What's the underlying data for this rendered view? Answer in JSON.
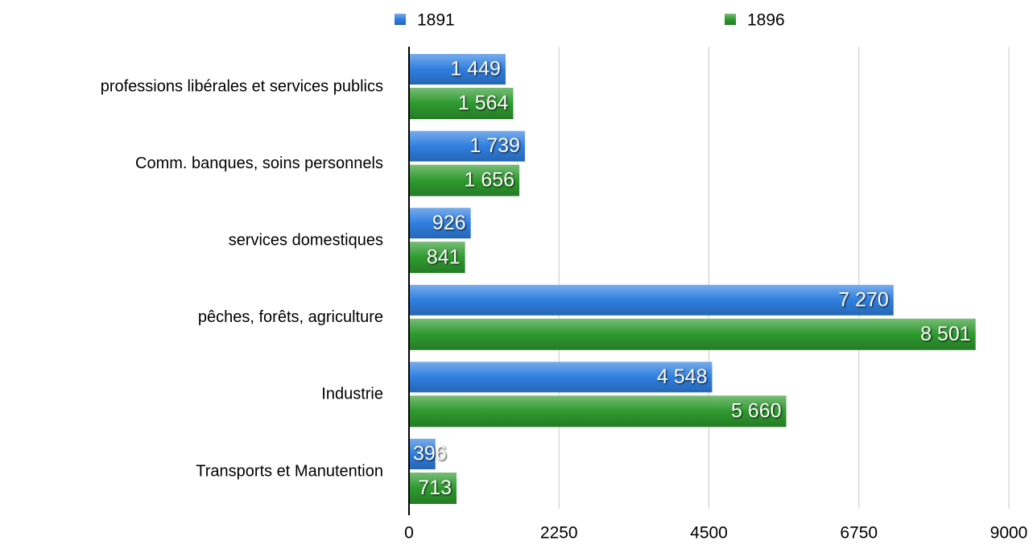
{
  "chart_data": {
    "type": "bar",
    "orientation": "horizontal",
    "categories": [
      "professions libérales et services publics",
      "Comm. banques, soins personnels",
      "services domestiques",
      "pêches, forêts, agriculture",
      "Industrie",
      "Transports et Manutention"
    ],
    "series": [
      {
        "name": "1891",
        "color": "#2f7fe0",
        "values": [
          1449,
          1739,
          926,
          7270,
          4548,
          396
        ],
        "value_labels": [
          "1 449",
          "1 739",
          "926",
          "7 270",
          "4 548",
          "396"
        ]
      },
      {
        "name": "1896",
        "color": "#2e9a2e",
        "values": [
          1564,
          1656,
          841,
          8501,
          5660,
          713
        ],
        "value_labels": [
          "1 564",
          "1 656",
          "841",
          "8 501",
          "5 660",
          "713"
        ]
      }
    ],
    "xlim": [
      0,
      9000
    ],
    "xticks": [
      0,
      2250,
      4500,
      6750,
      9000
    ],
    "grid": true,
    "legend": "top"
  }
}
